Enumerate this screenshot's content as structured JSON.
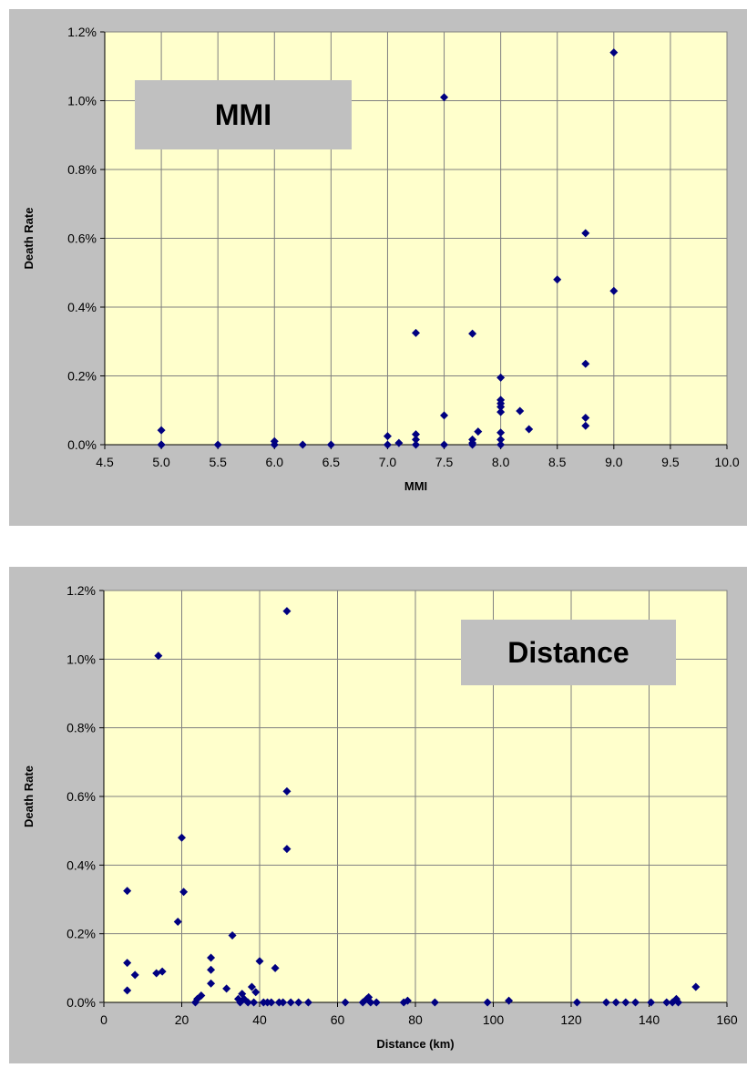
{
  "colors": {
    "panel": "#c0c0c0",
    "plot_area": "#ffffcc",
    "grid": "#808080",
    "marker": "#000080"
  },
  "chart_data": [
    {
      "type": "scatter",
      "title": "",
      "xlabel": "MMI",
      "ylabel": "Death Rate",
      "annotation": "MMI",
      "xlim": [
        4.5,
        10.0
      ],
      "ylim": [
        0,
        0.012
      ],
      "x_ticks": [
        "4.5",
        "5.0",
        "5.5",
        "6.0",
        "6.5",
        "7.0",
        "7.5",
        "8.0",
        "8.5",
        "9.0",
        "9.5",
        "10.0"
      ],
      "y_ticks": [
        "0.0%",
        "0.2%",
        "0.4%",
        "0.6%",
        "0.8%",
        "1.0%",
        "1.2%"
      ],
      "grid": true,
      "legend": "none",
      "points": [
        [
          5.0,
          0.00042
        ],
        [
          5.0,
          0.0
        ],
        [
          5.0,
          0.0
        ],
        [
          5.5,
          0.0
        ],
        [
          6.0,
          0.0001
        ],
        [
          6.0,
          0.0
        ],
        [
          6.25,
          0.0
        ],
        [
          6.5,
          0.0
        ],
        [
          7.0,
          0.00025
        ],
        [
          7.0,
          0.0
        ],
        [
          7.1,
          5e-05
        ],
        [
          7.25,
          0.00325
        ],
        [
          7.25,
          0.0003
        ],
        [
          7.25,
          0.00015
        ],
        [
          7.25,
          0.0
        ],
        [
          7.5,
          0.0101
        ],
        [
          7.5,
          0.00085
        ],
        [
          7.5,
          0.0
        ],
        [
          7.75,
          0.00323
        ],
        [
          7.75,
          0.00015
        ],
        [
          7.75,
          5e-05
        ],
        [
          7.75,
          0.0
        ],
        [
          7.8,
          0.00038
        ],
        [
          8.0,
          0.00195
        ],
        [
          8.0,
          0.0013
        ],
        [
          8.0,
          0.0012
        ],
        [
          8.0,
          0.0011
        ],
        [
          8.0,
          0.00095
        ],
        [
          8.0,
          0.00035
        ],
        [
          8.0,
          0.00015
        ],
        [
          8.0,
          0.0
        ],
        [
          8.17,
          0.00098
        ],
        [
          8.25,
          0.00045
        ],
        [
          8.5,
          0.0048
        ],
        [
          8.75,
          0.00615
        ],
        [
          8.75,
          0.00235
        ],
        [
          8.75,
          0.00078
        ],
        [
          8.75,
          0.00055
        ],
        [
          9.0,
          0.0114
        ],
        [
          9.0,
          0.00447
        ]
      ]
    },
    {
      "type": "scatter",
      "title": "",
      "xlabel": "Distance (km)",
      "ylabel": "Death Rate",
      "annotation": "Distance",
      "xlim": [
        0,
        160
      ],
      "ylim": [
        0,
        0.012
      ],
      "x_ticks": [
        "0",
        "20",
        "40",
        "60",
        "80",
        "100",
        "120",
        "140",
        "160"
      ],
      "y_ticks": [
        "0.0%",
        "0.2%",
        "0.4%",
        "0.6%",
        "0.8%",
        "1.0%",
        "1.2%"
      ],
      "grid": true,
      "legend": "none",
      "points": [
        [
          6,
          0.00325
        ],
        [
          6,
          0.00115
        ],
        [
          6,
          0.00035
        ],
        [
          8,
          0.0008
        ],
        [
          13.5,
          0.00085
        ],
        [
          14,
          0.0101
        ],
        [
          15,
          0.0009
        ],
        [
          19,
          0.00235
        ],
        [
          20,
          0.0048
        ],
        [
          20.5,
          0.00322
        ],
        [
          23.5,
          0.0
        ],
        [
          24,
          0.0001
        ],
        [
          25,
          0.0002
        ],
        [
          27.5,
          0.0013
        ],
        [
          27.5,
          0.00095
        ],
        [
          27.5,
          0.00055
        ],
        [
          31.5,
          0.0004
        ],
        [
          33,
          0.00195
        ],
        [
          34.5,
          0.0001
        ],
        [
          35,
          0.0
        ],
        [
          35.5,
          0.00025
        ],
        [
          36,
          0.0001
        ],
        [
          37,
          0.0
        ],
        [
          38,
          0.00045
        ],
        [
          38.5,
          0.0
        ],
        [
          39,
          0.0003
        ],
        [
          40,
          0.0012
        ],
        [
          41,
          0.0
        ],
        [
          42,
          0.0
        ],
        [
          43,
          0.0
        ],
        [
          44,
          0.001
        ],
        [
          45,
          0.0
        ],
        [
          46,
          0.0
        ],
        [
          47,
          0.0114
        ],
        [
          47,
          0.00615
        ],
        [
          47,
          0.00447
        ],
        [
          48,
          0.0
        ],
        [
          50,
          0.0
        ],
        [
          52.5,
          0.0
        ],
        [
          62,
          0.0
        ],
        [
          66.5,
          0.0
        ],
        [
          67.5,
          0.0001
        ],
        [
          68,
          0.00015
        ],
        [
          68.5,
          0.0
        ],
        [
          70,
          0.0
        ],
        [
          77,
          0.0
        ],
        [
          78,
          5e-05
        ],
        [
          85,
          0.0
        ],
        [
          98.5,
          0.0
        ],
        [
          104,
          5e-05
        ],
        [
          121.5,
          0.0
        ],
        [
          129,
          0.0
        ],
        [
          131.5,
          0.0
        ],
        [
          134,
          0.0
        ],
        [
          136.5,
          0.0
        ],
        [
          140.5,
          0.0
        ],
        [
          144.5,
          0.0
        ],
        [
          146,
          0.0
        ],
        [
          147,
          0.0001
        ],
        [
          147.5,
          0.0
        ],
        [
          152,
          0.00045
        ]
      ]
    }
  ]
}
